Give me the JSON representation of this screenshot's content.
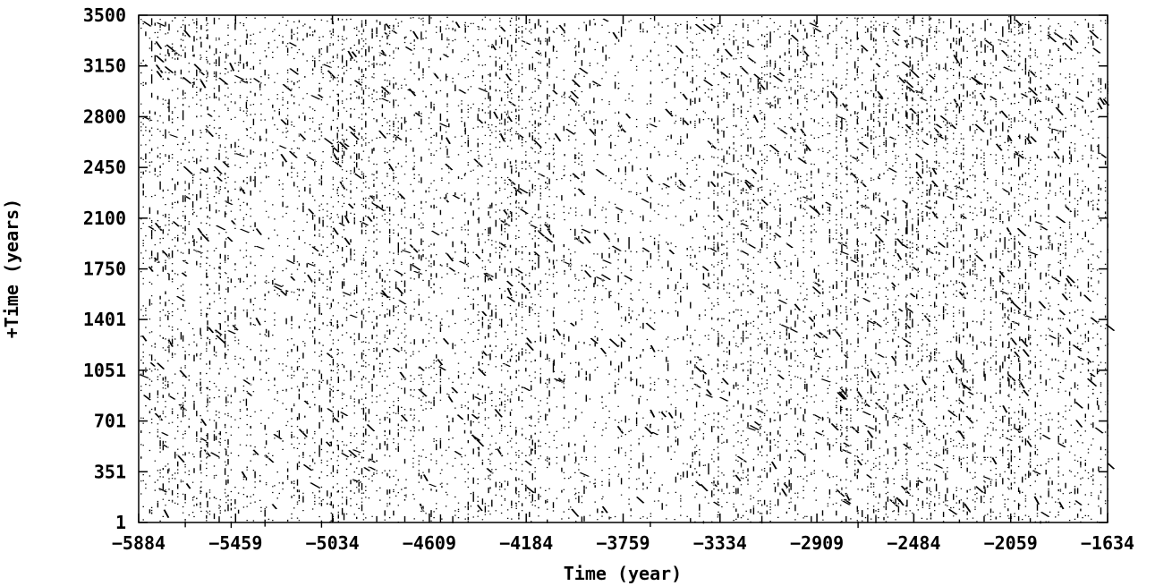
{
  "chart_data": {
    "type": "scatter",
    "title": "",
    "xlabel": "Time (year)",
    "ylabel": "+Time (years)",
    "x_ticks": [
      -5884,
      -5459,
      -5034,
      -4609,
      -4184,
      -3759,
      -3334,
      -2909,
      -2484,
      -2059,
      -1634
    ],
    "y_ticks": [
      1,
      351,
      701,
      1051,
      1401,
      1750,
      2100,
      2450,
      2800,
      3150,
      3500
    ],
    "xlim": [
      -5884,
      -1634
    ],
    "ylim": [
      1,
      3500
    ],
    "grid": false,
    "legend": "none",
    "marker_color": "#000000",
    "density_profile": [
      {
        "x": -5884,
        "d": 0.9
      },
      {
        "x": -5800,
        "d": 0.8
      },
      {
        "x": -5700,
        "d": 0.75
      },
      {
        "x": -5600,
        "d": 0.85
      },
      {
        "x": -5500,
        "d": 0.7
      },
      {
        "x": -5400,
        "d": 0.55
      },
      {
        "x": -5300,
        "d": 0.5
      },
      {
        "x": -5150,
        "d": 0.6
      },
      {
        "x": -5050,
        "d": 1.0
      },
      {
        "x": -4950,
        "d": 0.85
      },
      {
        "x": -4850,
        "d": 0.9
      },
      {
        "x": -4750,
        "d": 0.8
      },
      {
        "x": -4650,
        "d": 0.55
      },
      {
        "x": -4550,
        "d": 0.5
      },
      {
        "x": -4450,
        "d": 0.65
      },
      {
        "x": -4300,
        "d": 0.7
      },
      {
        "x": -4200,
        "d": 0.95
      },
      {
        "x": -4100,
        "d": 0.7
      },
      {
        "x": -3950,
        "d": 0.45
      },
      {
        "x": -3800,
        "d": 0.35
      },
      {
        "x": -3700,
        "d": 0.4
      },
      {
        "x": -3550,
        "d": 0.5
      },
      {
        "x": -3400,
        "d": 0.45
      },
      {
        "x": -3300,
        "d": 0.85
      },
      {
        "x": -3150,
        "d": 0.75
      },
      {
        "x": -3000,
        "d": 0.7
      },
      {
        "x": -2900,
        "d": 0.55
      },
      {
        "x": -2800,
        "d": 0.95
      },
      {
        "x": -2700,
        "d": 0.85
      },
      {
        "x": -2550,
        "d": 0.9
      },
      {
        "x": -2450,
        "d": 0.8
      },
      {
        "x": -2300,
        "d": 0.9
      },
      {
        "x": -2150,
        "d": 0.85
      },
      {
        "x": -2000,
        "d": 0.8
      },
      {
        "x": -1850,
        "d": 0.7
      },
      {
        "x": -1700,
        "d": 0.65
      },
      {
        "x": -1634,
        "d": 0.6
      }
    ]
  }
}
